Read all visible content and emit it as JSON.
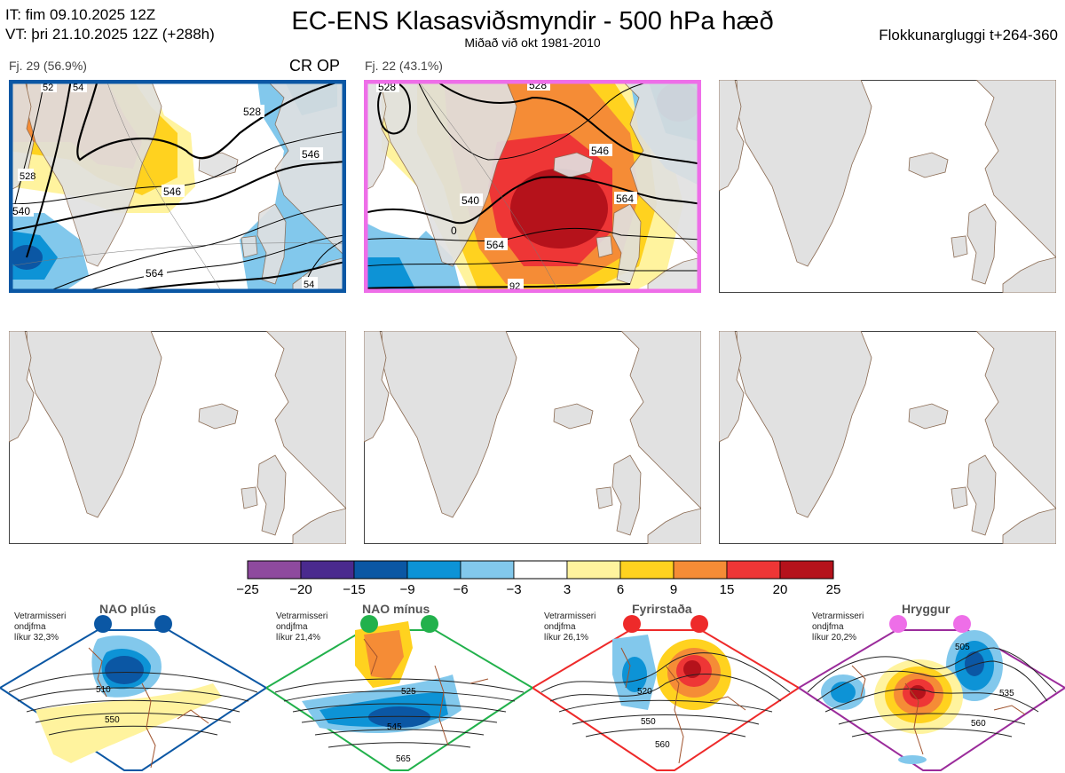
{
  "header": {
    "it_line": "IT: fim 09.10.2025 12Z",
    "vt_line": "VT: þri 21.10.2025 12Z  (+288h)",
    "title": "EC-ENS Klasasviðsmyndir - 500 hPa hæð",
    "subtitle": "Miðað við okt 1981-2010",
    "window": "Flokkunargluggi t+264-360"
  },
  "panels": [
    {
      "label": "Fj. 29 (56.9%)",
      "tag": "CR OP",
      "border_color": "#0b57a4",
      "contour_labels": [
        "528",
        "546",
        "546",
        "564",
        "540",
        "52",
        "54",
        "528",
        "54"
      ]
    },
    {
      "label": "Fj. 22 (43.1%)",
      "tag": "",
      "border_color": "#ee6ee8",
      "contour_labels": [
        "528",
        "546",
        "564",
        "540",
        "564",
        "0",
        "528",
        "92"
      ]
    },
    {
      "label": "",
      "tag": "",
      "border_color": ""
    },
    {
      "label": "",
      "tag": "",
      "border_color": ""
    },
    {
      "label": "",
      "tag": "",
      "border_color": ""
    },
    {
      "label": "",
      "tag": "",
      "border_color": ""
    }
  ],
  "colorbar": {
    "colors": [
      "#8e4a9e",
      "#4a2a8e",
      "#0b57a4",
      "#0d93d6",
      "#82c8ec",
      "#ffffff",
      "#fff39e",
      "#ffd21f",
      "#f58c36",
      "#ee3636",
      "#b5121b"
    ],
    "ticks": [
      "−25",
      "−20",
      "−15",
      "−9",
      "−6",
      "−3",
      "3",
      "6",
      "9",
      "15",
      "20",
      "25"
    ]
  },
  "regimes": [
    {
      "title": "NAO plús",
      "info": [
        "Vetrarmisseri",
        "ondjfma",
        "líkur 32,3%"
      ],
      "color": "#0b57a4",
      "contour_labels": [
        "510",
        "550"
      ]
    },
    {
      "title": "NAO mínus",
      "info": [
        "Vetrarmisseri",
        "ondjfma",
        "líkur 21,4%"
      ],
      "color": "#22b14c",
      "contour_labels": [
        "525",
        "545",
        "565"
      ]
    },
    {
      "title": "Fyrirstaða",
      "info": [
        "Vetrarmisseri",
        "ondjfma",
        "líkur 26,1%"
      ],
      "color": "#ee2a2a",
      "contour_labels": [
        "520",
        "550",
        "560"
      ]
    },
    {
      "title": "Hryggur",
      "info": [
        "Vetrarmisseri",
        "ondjfma",
        "líkur 20,2%"
      ],
      "color": "#9b2c9b",
      "dot_color": "#ee6ee8",
      "contour_labels": [
        "505",
        "535",
        "560"
      ]
    }
  ]
}
